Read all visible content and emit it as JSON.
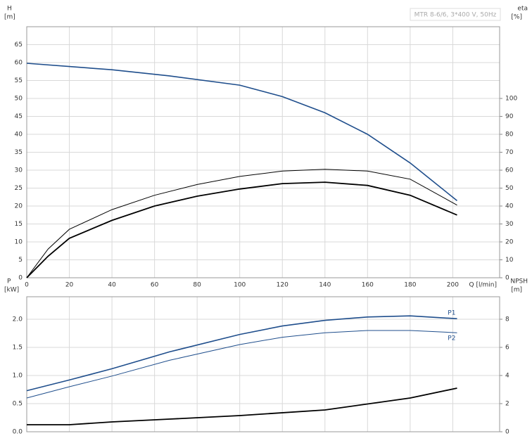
{
  "chart_data": [
    {
      "type": "line",
      "legend_text": "MTR 8-6/6, 3*400 V, 50Hz",
      "ylabel": "H",
      "yunit": "[m]",
      "y2label": "eta",
      "y2unit": "[%]",
      "xlabel": "Q [l/min]",
      "xlim": [
        0,
        222
      ],
      "xticks": [
        0,
        20,
        40,
        60,
        80,
        100,
        120,
        140,
        160,
        180,
        200
      ],
      "ylim": [
        0,
        70
      ],
      "yticks": [
        0,
        5,
        10,
        15,
        20,
        25,
        30,
        35,
        40,
        45,
        50,
        55,
        60,
        65
      ],
      "y2lim": [
        0,
        140
      ],
      "y2ticks": [
        0,
        10,
        20,
        30,
        40,
        50,
        60,
        70,
        80,
        90,
        100
      ],
      "grid": true,
      "series": [
        {
          "color": "#1f4e8c",
          "linewidth": 1.6,
          "x": [
            0,
            20,
            40,
            67,
            100,
            120,
            140,
            160,
            180,
            202
          ],
          "values": [
            59.8,
            58.9,
            58,
            56.3,
            53.7,
            50.5,
            46,
            40,
            32,
            21.5
          ]
        },
        {
          "color": "#000000",
          "linewidth": 1,
          "axis": "y2",
          "x": [
            0,
            10,
            20,
            40,
            60,
            80,
            100,
            120,
            140,
            160,
            180,
            202
          ],
          "values": [
            0,
            16,
            27,
            38,
            46,
            52,
            56.5,
            59.5,
            60.5,
            59.5,
            55,
            40.5
          ]
        },
        {
          "color": "#000000",
          "linewidth": 1.8,
          "axis": "y2",
          "x": [
            0,
            10,
            20,
            40,
            60,
            80,
            100,
            120,
            140,
            160,
            180,
            202
          ],
          "values": [
            0,
            12,
            22,
            32,
            40,
            45.5,
            49.5,
            52.5,
            53.3,
            51.5,
            46,
            35
          ]
        }
      ]
    },
    {
      "type": "line",
      "ylabel": "P",
      "yunit": "[kW]",
      "y2label": "NPSH",
      "y2unit": "[m]",
      "xlim": [
        0,
        222
      ],
      "xticks": [
        0,
        20,
        40,
        60,
        80,
        100,
        120,
        140,
        160,
        180,
        200
      ],
      "ylim": [
        0,
        2.4
      ],
      "yticks": [
        {
          "value": 0,
          "label": "0.0"
        },
        0.5,
        {
          "value": 1,
          "label": "1.0"
        },
        1.5,
        {
          "value": 2,
          "label": "2.0"
        }
      ],
      "y2lim": [
        0,
        9.6
      ],
      "y2ticks": [
        0,
        2,
        4,
        6,
        8
      ],
      "grid": true,
      "series": [
        {
          "name": "P1",
          "color": "#1f4e8c",
          "linewidth": 1.6,
          "x": [
            0,
            20,
            40,
            67,
            100,
            120,
            140,
            160,
            180,
            202
          ],
          "values": [
            0.73,
            0.92,
            1.12,
            1.42,
            1.73,
            1.88,
            1.98,
            2.04,
            2.06,
            2.01
          ]
        },
        {
          "name": "P2",
          "color": "#1f4e8c",
          "linewidth": 1,
          "x": [
            0,
            20,
            40,
            67,
            100,
            120,
            140,
            160,
            180,
            202
          ],
          "values": [
            0.6,
            0.8,
            0.99,
            1.27,
            1.55,
            1.68,
            1.76,
            1.8,
            1.8,
            1.76
          ]
        },
        {
          "color": "#000000",
          "linewidth": 1.8,
          "axis": "y2",
          "x": [
            0,
            20,
            40,
            67,
            100,
            140,
            180,
            202
          ],
          "values": [
            0.5,
            0.5,
            0.7,
            0.9,
            1.15,
            1.55,
            2.4,
            3.1
          ]
        }
      ]
    }
  ]
}
